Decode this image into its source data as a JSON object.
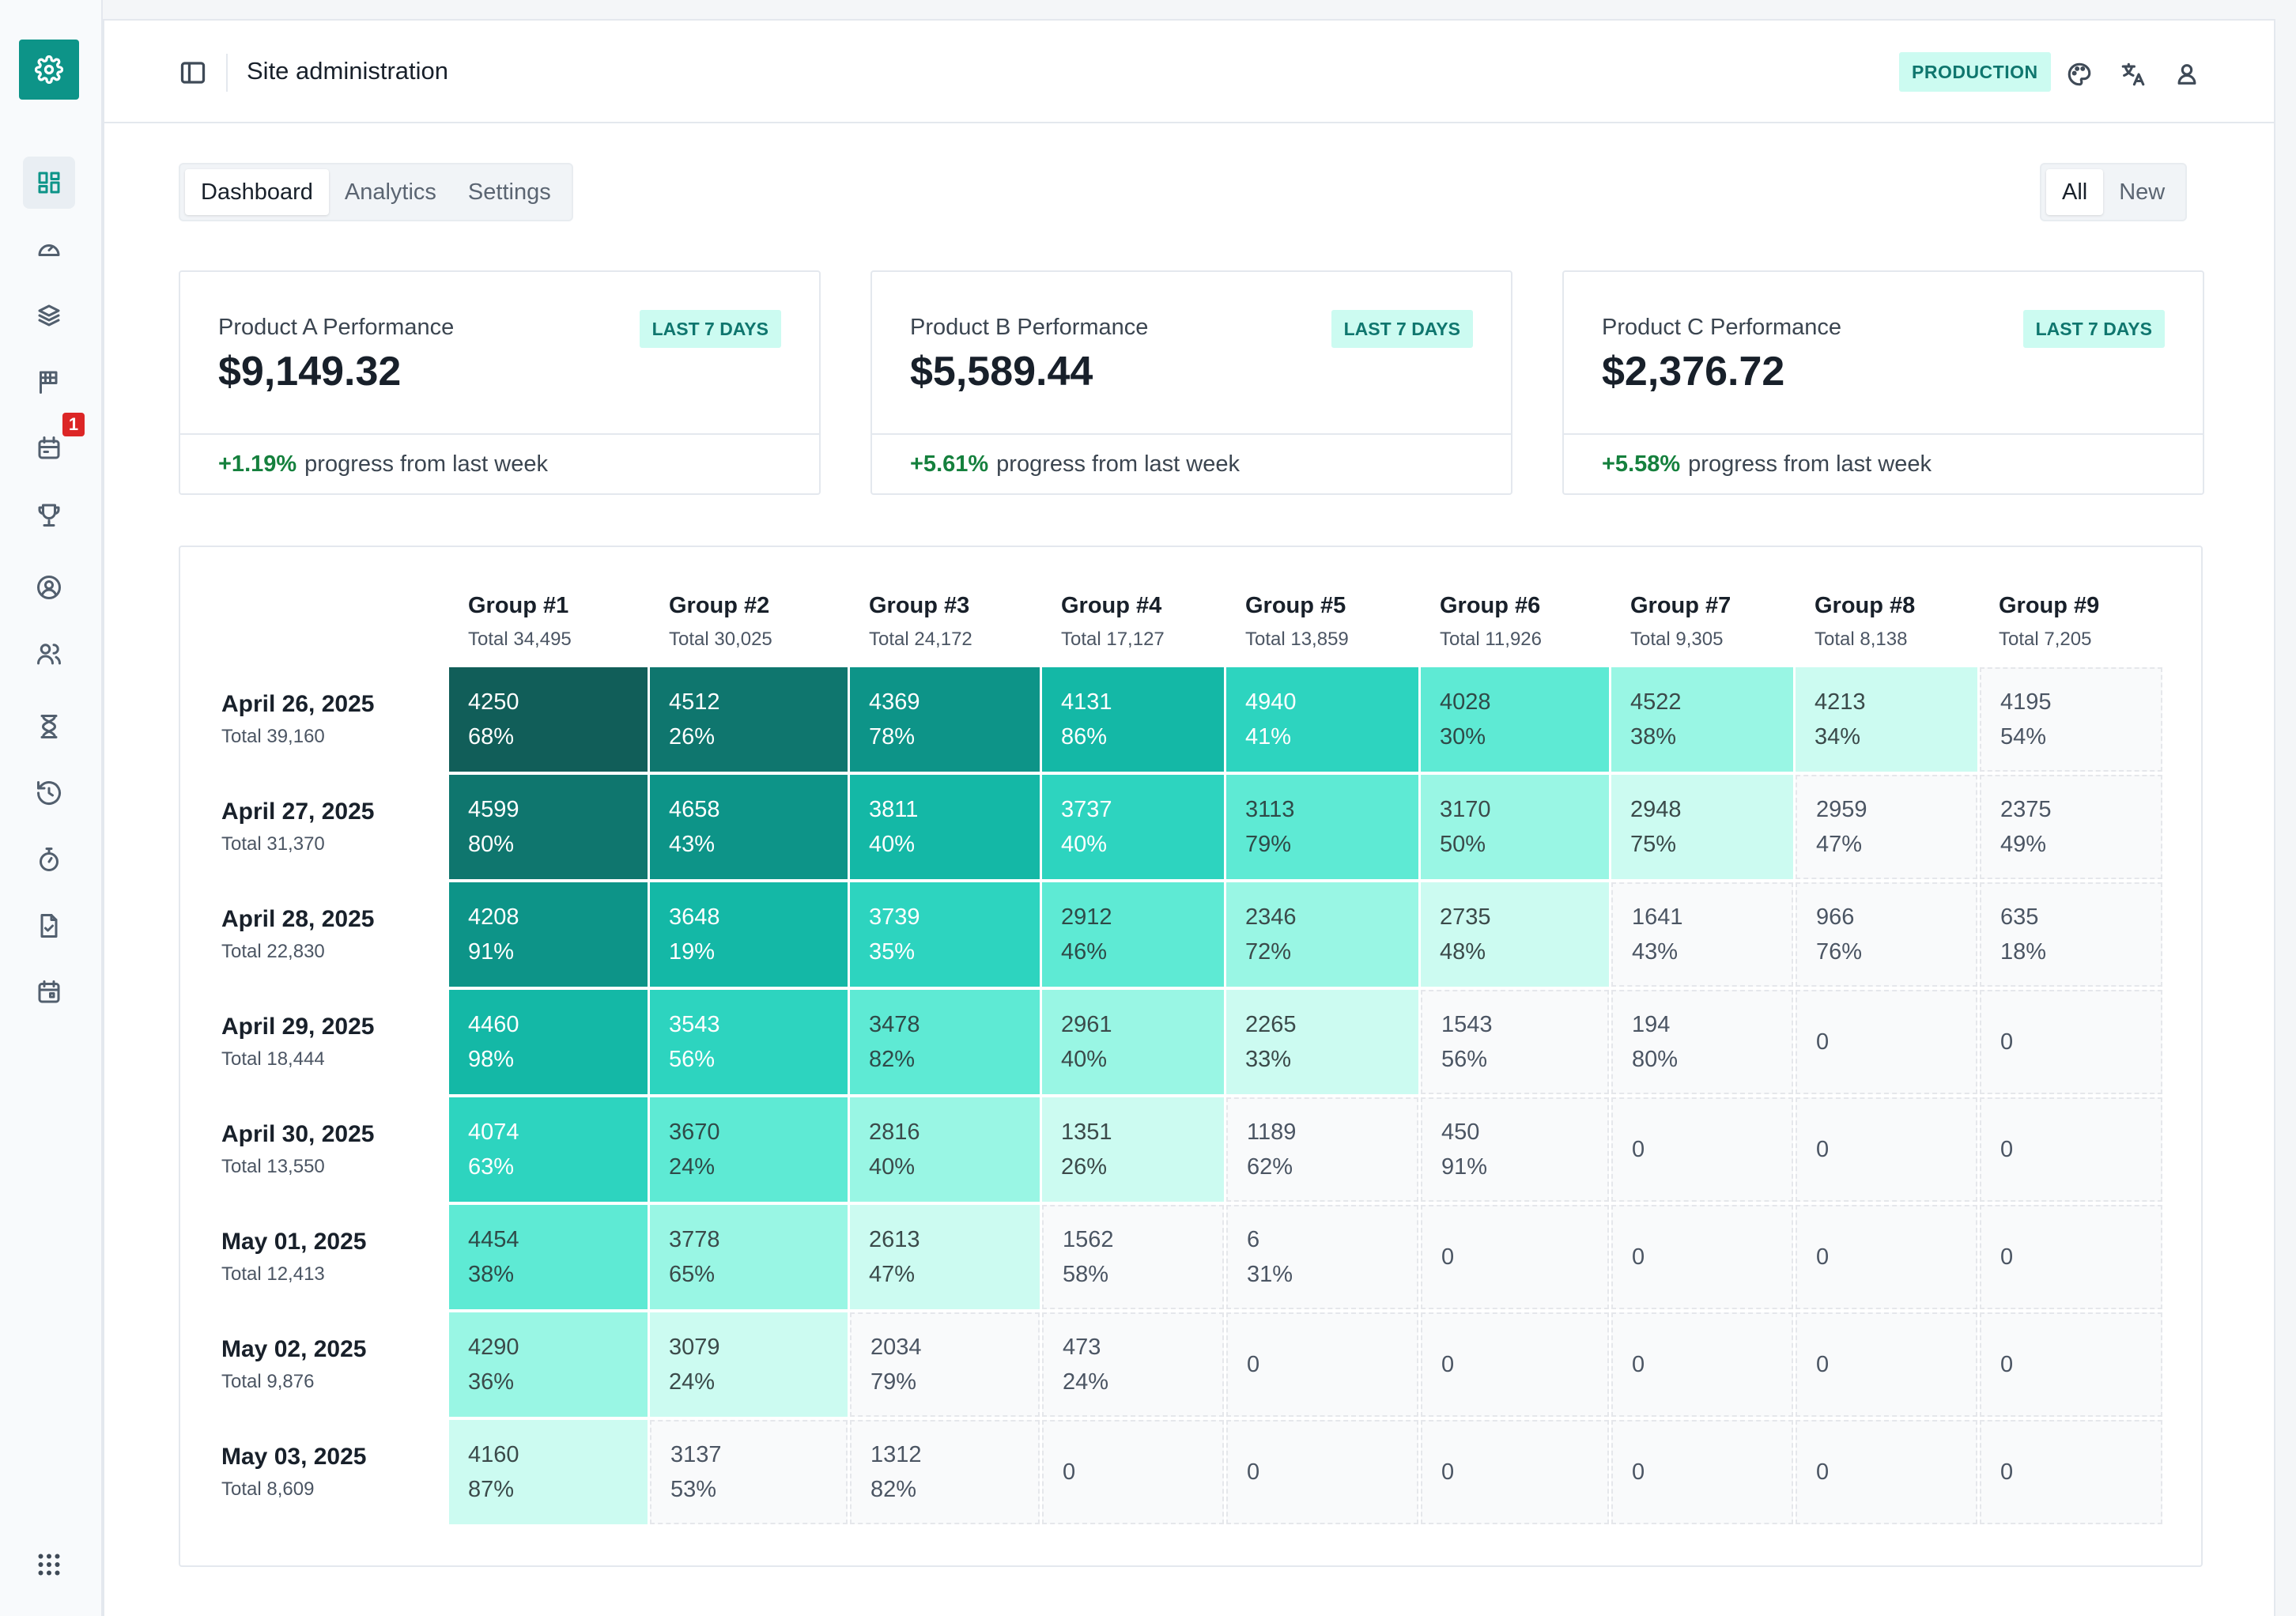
{
  "app": {
    "title": "Site administration",
    "environment": "PRODUCTION"
  },
  "sidebar": {
    "items": [
      {
        "icon": "dashboard-icon",
        "active": true
      },
      {
        "icon": "gauge-icon"
      },
      {
        "icon": "layers-icon"
      },
      {
        "icon": "flag-icon"
      },
      {
        "icon": "calendar-event-icon",
        "badge": "1"
      },
      {
        "icon": "trophy-icon"
      },
      {
        "icon": "user-circle-icon"
      },
      {
        "icon": "users-icon"
      },
      {
        "icon": "hourglass-icon"
      },
      {
        "icon": "history-icon"
      },
      {
        "icon": "stopwatch-icon"
      },
      {
        "icon": "file-check-icon"
      },
      {
        "icon": "calendar-icon"
      }
    ],
    "bottom_icon": "apps-grid-icon"
  },
  "tabs": [
    "Dashboard",
    "Analytics",
    "Settings"
  ],
  "active_tab": "Dashboard",
  "filter": [
    "All",
    "New"
  ],
  "active_filter": "All",
  "kpis": [
    {
      "label": "Product A Performance",
      "value": "$9,149.32",
      "period": "LAST 7 DAYS",
      "change": "+1.19%",
      "suffix": "progress from last week"
    },
    {
      "label": "Product B Performance",
      "value": "$5,589.44",
      "period": "LAST 7 DAYS",
      "change": "+5.61%",
      "suffix": "progress from last week"
    },
    {
      "label": "Product C Performance",
      "value": "$2,376.72",
      "period": "LAST 7 DAYS",
      "change": "+5.58%",
      "suffix": "progress from last week"
    }
  ],
  "colors": {
    "accent": "#0d9488",
    "badge_bg": "#ccfbf1",
    "positive": "#15803d",
    "heat_scale": [
      "#115e59",
      "#0f766e",
      "#0d9488",
      "#14b8a6",
      "#2dd4bf",
      "#5eead4",
      "#99f6e4",
      "#ccfbf1"
    ]
  },
  "chart_data": {
    "type": "heatmap",
    "columns": [
      {
        "name": "Group #1",
        "total": "Total 34,495"
      },
      {
        "name": "Group #2",
        "total": "Total 30,025"
      },
      {
        "name": "Group #3",
        "total": "Total 24,172"
      },
      {
        "name": "Group #4",
        "total": "Total 17,127"
      },
      {
        "name": "Group #5",
        "total": "Total 13,859"
      },
      {
        "name": "Group #6",
        "total": "Total 11,926"
      },
      {
        "name": "Group #7",
        "total": "Total 9,305"
      },
      {
        "name": "Group #8",
        "total": "Total 8,138"
      },
      {
        "name": "Group #9",
        "total": "Total 7,205"
      }
    ],
    "rows": [
      {
        "date": "April 26, 2025",
        "total": "Total 39,160",
        "cells": [
          {
            "value": "4250",
            "pct": "68%"
          },
          {
            "value": "4512",
            "pct": "26%"
          },
          {
            "value": "4369",
            "pct": "78%"
          },
          {
            "value": "4131",
            "pct": "86%"
          },
          {
            "value": "4940",
            "pct": "41%"
          },
          {
            "value": "4028",
            "pct": "30%"
          },
          {
            "value": "4522",
            "pct": "38%"
          },
          {
            "value": "4213",
            "pct": "34%"
          },
          {
            "value": "4195",
            "pct": "54%"
          }
        ]
      },
      {
        "date": "April 27, 2025",
        "total": "Total 31,370",
        "cells": [
          {
            "value": "4599",
            "pct": "80%"
          },
          {
            "value": "4658",
            "pct": "43%"
          },
          {
            "value": "3811",
            "pct": "40%"
          },
          {
            "value": "3737",
            "pct": "40%"
          },
          {
            "value": "3113",
            "pct": "79%"
          },
          {
            "value": "3170",
            "pct": "50%"
          },
          {
            "value": "2948",
            "pct": "75%"
          },
          {
            "value": "2959",
            "pct": "47%"
          },
          {
            "value": "2375",
            "pct": "49%"
          }
        ]
      },
      {
        "date": "April 28, 2025",
        "total": "Total 22,830",
        "cells": [
          {
            "value": "4208",
            "pct": "91%"
          },
          {
            "value": "3648",
            "pct": "19%"
          },
          {
            "value": "3739",
            "pct": "35%"
          },
          {
            "value": "2912",
            "pct": "46%"
          },
          {
            "value": "2346",
            "pct": "72%"
          },
          {
            "value": "2735",
            "pct": "48%"
          },
          {
            "value": "1641",
            "pct": "43%"
          },
          {
            "value": "966",
            "pct": "76%"
          },
          {
            "value": "635",
            "pct": "18%"
          }
        ]
      },
      {
        "date": "April 29, 2025",
        "total": "Total 18,444",
        "cells": [
          {
            "value": "4460",
            "pct": "98%"
          },
          {
            "value": "3543",
            "pct": "56%"
          },
          {
            "value": "3478",
            "pct": "82%"
          },
          {
            "value": "2961",
            "pct": "40%"
          },
          {
            "value": "2265",
            "pct": "33%"
          },
          {
            "value": "1543",
            "pct": "56%"
          },
          {
            "value": "194",
            "pct": "80%"
          },
          {
            "value": "0",
            "pct": ""
          },
          {
            "value": "0",
            "pct": ""
          }
        ]
      },
      {
        "date": "April 30, 2025",
        "total": "Total 13,550",
        "cells": [
          {
            "value": "4074",
            "pct": "63%"
          },
          {
            "value": "3670",
            "pct": "24%"
          },
          {
            "value": "2816",
            "pct": "40%"
          },
          {
            "value": "1351",
            "pct": "26%"
          },
          {
            "value": "1189",
            "pct": "62%"
          },
          {
            "value": "450",
            "pct": "91%"
          },
          {
            "value": "0",
            "pct": ""
          },
          {
            "value": "0",
            "pct": ""
          },
          {
            "value": "0",
            "pct": ""
          }
        ]
      },
      {
        "date": "May 01, 2025",
        "total": "Total 12,413",
        "cells": [
          {
            "value": "4454",
            "pct": "38%"
          },
          {
            "value": "3778",
            "pct": "65%"
          },
          {
            "value": "2613",
            "pct": "47%"
          },
          {
            "value": "1562",
            "pct": "58%"
          },
          {
            "value": "6",
            "pct": "31%"
          },
          {
            "value": "0",
            "pct": ""
          },
          {
            "value": "0",
            "pct": ""
          },
          {
            "value": "0",
            "pct": ""
          },
          {
            "value": "0",
            "pct": ""
          }
        ]
      },
      {
        "date": "May 02, 2025",
        "total": "Total 9,876",
        "cells": [
          {
            "value": "4290",
            "pct": "36%"
          },
          {
            "value": "3079",
            "pct": "24%"
          },
          {
            "value": "2034",
            "pct": "79%"
          },
          {
            "value": "473",
            "pct": "24%"
          },
          {
            "value": "0",
            "pct": ""
          },
          {
            "value": "0",
            "pct": ""
          },
          {
            "value": "0",
            "pct": ""
          },
          {
            "value": "0",
            "pct": ""
          },
          {
            "value": "0",
            "pct": ""
          }
        ]
      },
      {
        "date": "May 03, 2025",
        "total": "Total 8,609",
        "cells": [
          {
            "value": "4160",
            "pct": "87%"
          },
          {
            "value": "3137",
            "pct": "53%"
          },
          {
            "value": "1312",
            "pct": "82%"
          },
          {
            "value": "0",
            "pct": ""
          },
          {
            "value": "0",
            "pct": ""
          },
          {
            "value": "0",
            "pct": ""
          },
          {
            "value": "0",
            "pct": ""
          },
          {
            "value": "0",
            "pct": ""
          },
          {
            "value": "0",
            "pct": ""
          }
        ]
      }
    ]
  }
}
